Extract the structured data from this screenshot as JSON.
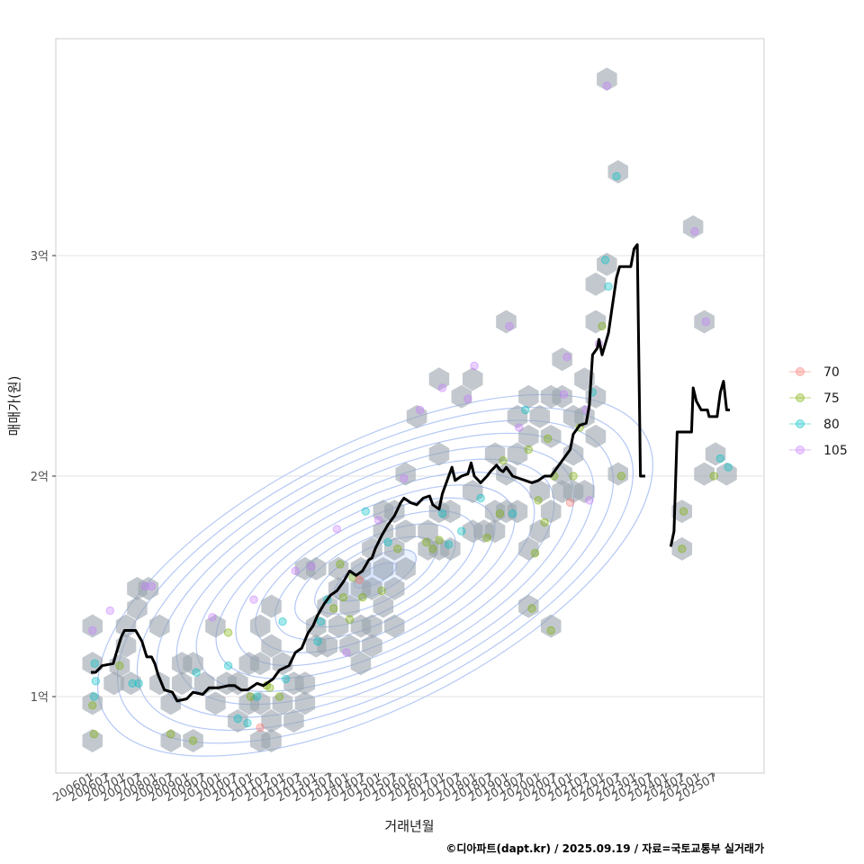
{
  "chart_data": {
    "type": "scatter",
    "title": "",
    "xlabel": "거래년월",
    "ylabel": "매매가(원)",
    "caption": "©디아파트(dapt.kr) / 2025.09.19 / 자료=국토교통부 실거래가",
    "x_range": [
      "200601",
      "202507"
    ],
    "y_range": [
      0.65,
      3.95
    ],
    "y_ticks": [
      {
        "value": 1,
        "label": "1억"
      },
      {
        "value": 2,
        "label": "2억"
      },
      {
        "value": 3,
        "label": "3억"
      }
    ],
    "x_tick_labels": [
      "200601",
      "200607",
      "200701",
      "200707",
      "200801",
      "200807",
      "200901",
      "200907",
      "201001",
      "201007",
      "201101",
      "201107",
      "201201",
      "201207",
      "201301",
      "201307",
      "201401",
      "201407",
      "201501",
      "201507",
      "201601",
      "201607",
      "201701",
      "201707",
      "201801",
      "201807",
      "201901",
      "201907",
      "202001",
      "202007",
      "202101",
      "202107",
      "202201",
      "202207",
      "202301",
      "202307",
      "202401",
      "202407",
      "202501",
      "202507"
    ],
    "legend": [
      {
        "name": "70",
        "color": "#F8766D"
      },
      {
        "name": "75",
        "color": "#7CAE00"
      },
      {
        "name": "80",
        "color": "#00BFC4"
      },
      {
        "name": "105",
        "color": "#C77CFF"
      }
    ],
    "hexbin": [
      [
        0.05,
        0.8
      ],
      [
        0.05,
        0.97
      ],
      [
        0.05,
        1.15
      ],
      [
        0.05,
        1.32
      ],
      [
        0.72,
        1.06
      ],
      [
        0.9,
        1.14
      ],
      [
        1.25,
        1.06
      ],
      [
        1.1,
        1.23
      ],
      [
        1.1,
        1.32
      ],
      [
        1.45,
        1.4
      ],
      [
        1.45,
        1.49
      ],
      [
        1.8,
        1.49
      ],
      [
        2.15,
        1.32
      ],
      [
        2.15,
        1.06
      ],
      [
        2.5,
        0.97
      ],
      [
        2.5,
        0.8
      ],
      [
        2.85,
        1.06
      ],
      [
        2.85,
        1.15
      ],
      [
        3.2,
        1.15
      ],
      [
        3.2,
        0.8
      ],
      [
        3.55,
        1.06
      ],
      [
        3.9,
        1.32
      ],
      [
        3.9,
        0.97
      ],
      [
        4.25,
        1.06
      ],
      [
        4.6,
        0.89
      ],
      [
        4.6,
        1.06
      ],
      [
        4.95,
        0.97
      ],
      [
        4.95,
        1.15
      ],
      [
        5.3,
        1.32
      ],
      [
        5.3,
        1.15
      ],
      [
        5.3,
        0.97
      ],
      [
        5.3,
        0.8
      ],
      [
        5.65,
        1.23
      ],
      [
        5.65,
        1.41
      ],
      [
        5.65,
        0.89
      ],
      [
        5.65,
        0.8
      ],
      [
        6.0,
        1.15
      ],
      [
        6.0,
        0.97
      ],
      [
        6.35,
        1.06
      ],
      [
        6.35,
        0.89
      ],
      [
        6.7,
        1.06
      ],
      [
        6.7,
        0.97
      ],
      [
        6.7,
        1.58
      ],
      [
        7.05,
        1.32
      ],
      [
        7.05,
        1.23
      ],
      [
        7.05,
        1.58
      ],
      [
        7.4,
        1.41
      ],
      [
        7.4,
        1.23
      ],
      [
        7.75,
        1.32
      ],
      [
        7.75,
        1.49
      ],
      [
        7.75,
        1.58
      ],
      [
        8.1,
        1.41
      ],
      [
        8.1,
        1.23
      ],
      [
        8.45,
        1.58
      ],
      [
        8.45,
        1.49
      ],
      [
        8.45,
        1.32
      ],
      [
        8.45,
        1.15
      ],
      [
        8.8,
        1.67
      ],
      [
        8.8,
        1.49
      ],
      [
        8.8,
        1.32
      ],
      [
        8.8,
        1.23
      ],
      [
        9.15,
        1.84
      ],
      [
        9.15,
        1.75
      ],
      [
        9.15,
        1.58
      ],
      [
        9.15,
        1.41
      ],
      [
        9.5,
        1.84
      ],
      [
        9.5,
        1.67
      ],
      [
        9.5,
        1.49
      ],
      [
        9.5,
        1.32
      ],
      [
        9.85,
        2.01
      ],
      [
        9.85,
        1.75
      ],
      [
        9.85,
        1.58
      ],
      [
        10.2,
        2.27
      ],
      [
        10.55,
        1.75
      ],
      [
        10.55,
        1.67
      ],
      [
        10.9,
        2.44
      ],
      [
        10.9,
        2.1
      ],
      [
        10.9,
        1.84
      ],
      [
        10.9,
        1.67
      ],
      [
        11.25,
        1.84
      ],
      [
        11.25,
        1.67
      ],
      [
        11.6,
        2.36
      ],
      [
        11.95,
        2.44
      ],
      [
        11.95,
        1.93
      ],
      [
        11.95,
        1.75
      ],
      [
        12.3,
        1.75
      ],
      [
        12.65,
        2.1
      ],
      [
        12.65,
        1.84
      ],
      [
        12.65,
        1.75
      ],
      [
        13.0,
        2.7
      ],
      [
        13.0,
        2.01
      ],
      [
        13.0,
        1.84
      ],
      [
        13.35,
        2.27
      ],
      [
        13.35,
        2.1
      ],
      [
        13.35,
        1.84
      ],
      [
        13.7,
        2.36
      ],
      [
        13.7,
        2.18
      ],
      [
        13.7,
        1.67
      ],
      [
        13.7,
        1.41
      ],
      [
        14.05,
        2.27
      ],
      [
        14.05,
        1.93
      ],
      [
        14.05,
        1.75
      ],
      [
        14.4,
        2.36
      ],
      [
        14.4,
        2.18
      ],
      [
        14.4,
        1.84
      ],
      [
        14.4,
        1.32
      ],
      [
        14.75,
        2.53
      ],
      [
        14.75,
        2.36
      ],
      [
        14.75,
        2.01
      ],
      [
        14.75,
        1.93
      ],
      [
        15.1,
        2.27
      ],
      [
        15.1,
        2.1
      ],
      [
        15.1,
        1.93
      ],
      [
        15.45,
        2.44
      ],
      [
        15.45,
        2.27
      ],
      [
        15.45,
        1.93
      ],
      [
        15.8,
        2.36
      ],
      [
        15.8,
        2.18
      ],
      [
        15.8,
        2.87
      ],
      [
        15.8,
        2.7
      ],
      [
        16.15,
        2.96
      ],
      [
        16.15,
        3.8
      ],
      [
        16.5,
        3.38
      ],
      [
        16.5,
        2.01
      ],
      [
        18.5,
        1.84
      ],
      [
        18.5,
        1.67
      ],
      [
        18.85,
        3.13
      ],
      [
        19.2,
        2.7
      ],
      [
        19.2,
        2.01
      ],
      [
        19.55,
        2.1
      ],
      [
        19.9,
        2.01
      ]
    ],
    "points": [
      {
        "x": 0.1,
        "y": 0.83,
        "s": "75"
      },
      {
        "x": 0.05,
        "y": 0.96,
        "s": "75"
      },
      {
        "x": 0.1,
        "y": 1.0,
        "s": "80"
      },
      {
        "x": 0.15,
        "y": 1.07,
        "s": "80"
      },
      {
        "x": 0.12,
        "y": 1.15,
        "s": "80"
      },
      {
        "x": 0.05,
        "y": 1.3,
        "s": "105"
      },
      {
        "x": 0.6,
        "y": 1.39,
        "s": "105"
      },
      {
        "x": 0.9,
        "y": 1.14,
        "s": "75"
      },
      {
        "x": 1.3,
        "y": 1.06,
        "s": "80"
      },
      {
        "x": 1.7,
        "y": 1.5,
        "s": "105"
      },
      {
        "x": 1.9,
        "y": 1.5,
        "s": "105"
      },
      {
        "x": 1.5,
        "y": 1.06,
        "s": "80"
      },
      {
        "x": 2.5,
        "y": 0.83,
        "s": "75"
      },
      {
        "x": 3.2,
        "y": 0.8,
        "s": "75"
      },
      {
        "x": 3.3,
        "y": 1.11,
        "s": "80"
      },
      {
        "x": 3.8,
        "y": 1.36,
        "s": "105"
      },
      {
        "x": 4.3,
        "y": 1.29,
        "s": "75"
      },
      {
        "x": 4.3,
        "y": 1.14,
        "s": "80"
      },
      {
        "x": 4.6,
        "y": 0.9,
        "s": "80"
      },
      {
        "x": 4.9,
        "y": 0.88,
        "s": "80"
      },
      {
        "x": 5.0,
        "y": 1.0,
        "s": "75"
      },
      {
        "x": 5.2,
        "y": 1.0,
        "s": "80"
      },
      {
        "x": 5.3,
        "y": 0.86,
        "s": "70"
      },
      {
        "x": 5.5,
        "y": 1.05,
        "s": "75"
      },
      {
        "x": 5.6,
        "y": 1.04,
        "s": "75"
      },
      {
        "x": 5.9,
        "y": 1.0,
        "s": "75"
      },
      {
        "x": 5.1,
        "y": 1.44,
        "s": "105"
      },
      {
        "x": 6.0,
        "y": 1.34,
        "s": "80"
      },
      {
        "x": 6.1,
        "y": 1.08,
        "s": "80"
      },
      {
        "x": 6.4,
        "y": 1.57,
        "s": "105"
      },
      {
        "x": 6.9,
        "y": 1.59,
        "s": "105"
      },
      {
        "x": 7.2,
        "y": 1.34,
        "s": "80"
      },
      {
        "x": 7.1,
        "y": 1.25,
        "s": "80"
      },
      {
        "x": 7.4,
        "y": 1.44,
        "s": "80"
      },
      {
        "x": 7.6,
        "y": 1.4,
        "s": "75"
      },
      {
        "x": 7.8,
        "y": 1.6,
        "s": "75"
      },
      {
        "x": 7.9,
        "y": 1.45,
        "s": "75"
      },
      {
        "x": 8.0,
        "y": 1.2,
        "s": "105"
      },
      {
        "x": 8.1,
        "y": 1.35,
        "s": "75"
      },
      {
        "x": 8.2,
        "y": 1.54,
        "s": "75"
      },
      {
        "x": 8.4,
        "y": 1.53,
        "s": "70"
      },
      {
        "x": 8.5,
        "y": 1.45,
        "s": "75"
      },
      {
        "x": 7.7,
        "y": 1.76,
        "s": "105"
      },
      {
        "x": 8.6,
        "y": 1.84,
        "s": "80"
      },
      {
        "x": 9.0,
        "y": 1.8,
        "s": "105"
      },
      {
        "x": 9.1,
        "y": 1.48,
        "s": "75"
      },
      {
        "x": 9.3,
        "y": 1.7,
        "s": "80"
      },
      {
        "x": 9.6,
        "y": 1.67,
        "s": "75"
      },
      {
        "x": 9.8,
        "y": 1.99,
        "s": "105"
      },
      {
        "x": 10.3,
        "y": 2.3,
        "s": "105"
      },
      {
        "x": 10.5,
        "y": 1.7,
        "s": "75"
      },
      {
        "x": 10.7,
        "y": 1.67,
        "s": "75"
      },
      {
        "x": 10.9,
        "y": 1.71,
        "s": "75"
      },
      {
        "x": 11.0,
        "y": 1.83,
        "s": "80"
      },
      {
        "x": 11.2,
        "y": 1.69,
        "s": "80"
      },
      {
        "x": 11.0,
        "y": 2.4,
        "s": "105"
      },
      {
        "x": 11.8,
        "y": 2.35,
        "s": "105"
      },
      {
        "x": 12.0,
        "y": 2.5,
        "s": "105"
      },
      {
        "x": 11.6,
        "y": 1.75,
        "s": "80"
      },
      {
        "x": 12.2,
        "y": 1.9,
        "s": "80"
      },
      {
        "x": 12.4,
        "y": 1.72,
        "s": "75"
      },
      {
        "x": 12.8,
        "y": 1.83,
        "s": "75"
      },
      {
        "x": 12.9,
        "y": 2.07,
        "s": "75"
      },
      {
        "x": 13.1,
        "y": 2.68,
        "s": "105"
      },
      {
        "x": 13.2,
        "y": 1.83,
        "s": "80"
      },
      {
        "x": 13.4,
        "y": 2.22,
        "s": "105"
      },
      {
        "x": 13.6,
        "y": 2.3,
        "s": "80"
      },
      {
        "x": 13.7,
        "y": 2.12,
        "s": "75"
      },
      {
        "x": 13.8,
        "y": 1.4,
        "s": "75"
      },
      {
        "x": 13.9,
        "y": 1.65,
        "s": "75"
      },
      {
        "x": 14.0,
        "y": 1.89,
        "s": "75"
      },
      {
        "x": 14.2,
        "y": 1.79,
        "s": "75"
      },
      {
        "x": 14.3,
        "y": 2.17,
        "s": "75"
      },
      {
        "x": 14.4,
        "y": 1.3,
        "s": "75"
      },
      {
        "x": 14.5,
        "y": 2.0,
        "s": "75"
      },
      {
        "x": 14.8,
        "y": 2.37,
        "s": "105"
      },
      {
        "x": 14.9,
        "y": 2.54,
        "s": "105"
      },
      {
        "x": 15.0,
        "y": 1.88,
        "s": "70"
      },
      {
        "x": 15.1,
        "y": 2.0,
        "s": "75"
      },
      {
        "x": 15.3,
        "y": 2.22,
        "s": "75"
      },
      {
        "x": 15.5,
        "y": 2.3,
        "s": "105"
      },
      {
        "x": 15.6,
        "y": 1.89,
        "s": "105"
      },
      {
        "x": 15.7,
        "y": 2.38,
        "s": "80"
      },
      {
        "x": 15.9,
        "y": 2.6,
        "s": "105"
      },
      {
        "x": 16.0,
        "y": 2.68,
        "s": "75"
      },
      {
        "x": 16.1,
        "y": 2.98,
        "s": "80"
      },
      {
        "x": 16.2,
        "y": 2.86,
        "s": "80"
      },
      {
        "x": 16.15,
        "y": 3.77,
        "s": "105"
      },
      {
        "x": 16.45,
        "y": 3.36,
        "s": "80"
      },
      {
        "x": 16.6,
        "y": 2.0,
        "s": "75"
      },
      {
        "x": 18.55,
        "y": 1.84,
        "s": "75"
      },
      {
        "x": 18.5,
        "y": 1.67,
        "s": "75"
      },
      {
        "x": 18.9,
        "y": 3.11,
        "s": "105"
      },
      {
        "x": 19.25,
        "y": 2.7,
        "s": "105"
      },
      {
        "x": 19.5,
        "y": 2.0,
        "s": "75"
      },
      {
        "x": 19.7,
        "y": 2.08,
        "s": "80"
      },
      {
        "x": 19.95,
        "y": 2.04,
        "s": "80"
      }
    ],
    "median_line": [
      [
        0.0,
        1.11
      ],
      [
        0.15,
        1.11
      ],
      [
        0.35,
        1.14
      ],
      [
        0.7,
        1.15
      ],
      [
        0.8,
        1.2
      ],
      [
        0.95,
        1.27
      ],
      [
        1.05,
        1.3
      ],
      [
        1.4,
        1.3
      ],
      [
        1.6,
        1.25
      ],
      [
        1.75,
        1.18
      ],
      [
        1.9,
        1.18
      ],
      [
        2.0,
        1.15
      ],
      [
        2.1,
        1.1
      ],
      [
        2.3,
        1.03
      ],
      [
        2.55,
        1.02
      ],
      [
        2.7,
        0.98
      ],
      [
        3.0,
        0.99
      ],
      [
        3.2,
        1.02
      ],
      [
        3.5,
        1.01
      ],
      [
        3.7,
        1.04
      ],
      [
        4.0,
        1.04
      ],
      [
        4.3,
        1.05
      ],
      [
        4.5,
        1.05
      ],
      [
        4.7,
        1.03
      ],
      [
        4.9,
        1.03
      ],
      [
        5.2,
        1.06
      ],
      [
        5.4,
        1.05
      ],
      [
        5.7,
        1.08
      ],
      [
        5.9,
        1.12
      ],
      [
        6.2,
        1.14
      ],
      [
        6.4,
        1.2
      ],
      [
        6.6,
        1.22
      ],
      [
        6.8,
        1.29
      ],
      [
        6.95,
        1.32
      ],
      [
        7.1,
        1.37
      ],
      [
        7.3,
        1.42
      ],
      [
        7.5,
        1.46
      ],
      [
        7.7,
        1.48
      ],
      [
        7.9,
        1.52
      ],
      [
        8.1,
        1.57
      ],
      [
        8.3,
        1.55
      ],
      [
        8.5,
        1.57
      ],
      [
        8.7,
        1.62
      ],
      [
        8.8,
        1.63
      ],
      [
        8.9,
        1.67
      ],
      [
        9.1,
        1.73
      ],
      [
        9.3,
        1.78
      ],
      [
        9.5,
        1.82
      ],
      [
        9.7,
        1.88
      ],
      [
        9.8,
        1.9
      ],
      [
        10.0,
        1.88
      ],
      [
        10.2,
        1.87
      ],
      [
        10.4,
        1.9
      ],
      [
        10.6,
        1.91
      ],
      [
        10.7,
        1.87
      ],
      [
        10.9,
        1.85
      ],
      [
        11.0,
        1.92
      ],
      [
        11.2,
        2.0
      ],
      [
        11.3,
        2.04
      ],
      [
        11.4,
        1.98
      ],
      [
        11.6,
        2.0
      ],
      [
        11.8,
        2.01
      ],
      [
        11.9,
        2.06
      ],
      [
        12.0,
        2.0
      ],
      [
        12.2,
        1.97
      ],
      [
        12.4,
        2.0
      ],
      [
        12.5,
        2.02
      ],
      [
        12.7,
        2.05
      ],
      [
        12.8,
        2.03
      ],
      [
        12.9,
        2.02
      ],
      [
        13.0,
        2.04
      ],
      [
        13.2,
        2.0
      ],
      [
        13.4,
        1.99
      ],
      [
        13.6,
        1.98
      ],
      [
        13.8,
        1.97
      ],
      [
        14.0,
        1.98
      ],
      [
        14.2,
        2.0
      ],
      [
        14.4,
        2.0
      ],
      [
        14.6,
        2.04
      ],
      [
        14.8,
        2.08
      ],
      [
        15.0,
        2.12
      ],
      [
        15.1,
        2.19
      ],
      [
        15.3,
        2.23
      ],
      [
        15.5,
        2.24
      ],
      [
        15.6,
        2.32
      ],
      [
        15.7,
        2.55
      ],
      [
        15.85,
        2.58
      ],
      [
        15.9,
        2.62
      ],
      [
        16.0,
        2.55
      ],
      [
        16.1,
        2.6
      ],
      [
        16.2,
        2.65
      ],
      [
        16.3,
        2.75
      ],
      [
        16.45,
        2.9
      ],
      [
        16.55,
        2.95
      ],
      [
        16.7,
        2.95
      ],
      [
        16.9,
        2.95
      ],
      [
        17.0,
        3.03
      ],
      [
        17.1,
        3.05
      ],
      [
        17.2,
        2.0
      ],
      [
        17.35,
        2.0
      ]
    ],
    "median_line_2": [
      [
        18.15,
        1.68
      ],
      [
        18.25,
        1.75
      ],
      [
        18.35,
        2.2
      ],
      [
        18.65,
        2.2
      ],
      [
        18.8,
        2.2
      ],
      [
        18.85,
        2.4
      ],
      [
        18.95,
        2.34
      ],
      [
        19.1,
        2.3
      ],
      [
        19.3,
        2.3
      ],
      [
        19.35,
        2.27
      ],
      [
        19.6,
        2.27
      ],
      [
        19.7,
        2.38
      ],
      [
        19.8,
        2.43
      ],
      [
        19.9,
        2.3
      ],
      [
        20.0,
        2.3
      ]
    ],
    "density_contours": 14
  }
}
